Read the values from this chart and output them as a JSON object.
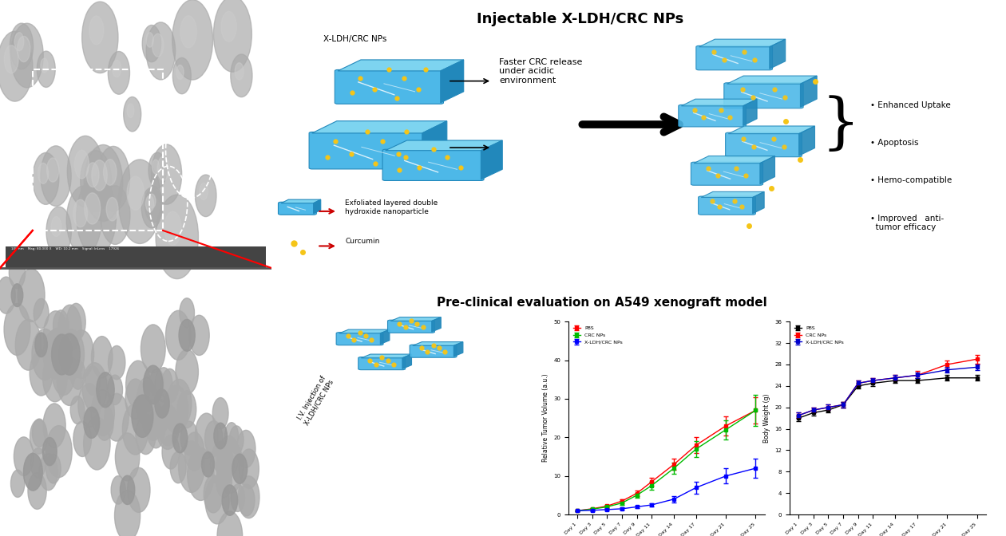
{
  "title_top": "Injectable X-LDH/CRC NPs",
  "title_bottom": "Pre-clinical evaluation on A549 xenograft model",
  "bg_color_top": "#d9d9d9",
  "bg_color_bottom": "#c8c8c8",
  "tumor_volume": {
    "days": [
      1,
      3,
      5,
      7,
      9,
      11,
      14,
      17,
      21,
      25
    ],
    "day_labels": [
      "Day 1",
      "Day 3",
      "Day 5",
      "Day 7",
      "Day 9",
      "Day 11",
      "Day 14",
      "Day 17",
      "Day 21",
      "Day 25"
    ],
    "PBS": [
      1.0,
      1.5,
      2.2,
      3.5,
      5.5,
      8.5,
      13.0,
      18.0,
      23.0,
      27.0
    ],
    "PBS_err": [
      0.1,
      0.2,
      0.3,
      0.5,
      0.7,
      1.0,
      1.5,
      2.0,
      2.5,
      3.5
    ],
    "CRC_NPs": [
      1.0,
      1.4,
      2.0,
      3.0,
      5.0,
      7.5,
      12.0,
      17.0,
      22.0,
      27.0
    ],
    "CRC_NPs_err": [
      0.1,
      0.2,
      0.3,
      0.5,
      0.7,
      1.0,
      1.5,
      2.0,
      2.5,
      4.0
    ],
    "XLDHCRC_NPs": [
      1.0,
      1.1,
      1.3,
      1.5,
      2.0,
      2.5,
      4.0,
      7.0,
      10.0,
      12.0
    ],
    "XLDHCRC_NPs_err": [
      0.1,
      0.15,
      0.2,
      0.3,
      0.4,
      0.5,
      0.8,
      1.5,
      2.0,
      2.5
    ],
    "ylabel": "Relative Tumor Volume (a.u.)",
    "ylim": [
      0,
      50
    ],
    "yticks": [
      0,
      10,
      20,
      30,
      40,
      50
    ]
  },
  "body_weight": {
    "days": [
      1,
      3,
      5,
      7,
      9,
      11,
      14,
      17,
      21,
      25
    ],
    "day_labels": [
      "Day 1",
      "Day 3",
      "Day 5",
      "Day 7",
      "Day 9",
      "Day 11",
      "Day 14",
      "Day 17",
      "Day 21",
      "Day 25"
    ],
    "PBS": [
      18.0,
      19.0,
      19.5,
      20.5,
      24.0,
      24.5,
      25.0,
      25.0,
      25.5,
      25.5
    ],
    "PBS_err": [
      0.5,
      0.5,
      0.5,
      0.5,
      0.5,
      0.5,
      0.5,
      0.5,
      0.5,
      0.5
    ],
    "CRC_NPs": [
      18.5,
      19.5,
      20.0,
      20.5,
      24.5,
      25.0,
      25.5,
      26.0,
      28.0,
      29.0
    ],
    "CRC_NPs_err": [
      0.5,
      0.5,
      0.5,
      0.5,
      0.5,
      0.5,
      0.5,
      0.8,
      0.8,
      0.8
    ],
    "XLDHCRC_NPs": [
      18.5,
      19.5,
      20.0,
      20.5,
      24.5,
      25.0,
      25.5,
      26.0,
      27.0,
      27.5
    ],
    "XLDHCRC_NPs_err": [
      0.5,
      0.5,
      0.5,
      0.5,
      0.5,
      0.5,
      0.5,
      0.5,
      0.5,
      0.5
    ],
    "ylabel": "Body Weight (g)",
    "ylim": [
      0,
      36
    ],
    "yticks": [
      0,
      4,
      8,
      12,
      16,
      20,
      24,
      28,
      32,
      36
    ]
  },
  "colors": {
    "PBS_tv": "#ff0000",
    "CRC_NPs_tv": "#00bb00",
    "XLDHCRC_NPs_tv": "#0000ff",
    "PBS_bw": "#000000",
    "CRC_NPs_bw": "#ff0000",
    "XLDHCRC_NPs_bw": "#0000cc"
  },
  "bullet_points": [
    "• Enhanced Uptake",
    "• Apoptosis",
    "• Hemo-compatible",
    "• Improved   anti-\n  tumor efficacy"
  ],
  "np_blue_face": "#4db8e8",
  "np_blue_top": "#7dd4f0",
  "np_blue_right": "#2288bb",
  "np_blue_border": "#2288bb",
  "curcumin_color": "#f5c518",
  "arrow_color": "#1a1a1a",
  "red_arrow_color": "#cc0000"
}
